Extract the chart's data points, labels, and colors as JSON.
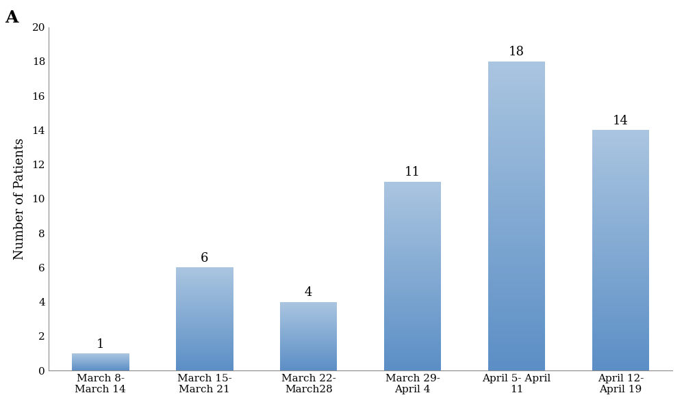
{
  "categories": [
    "March 8-\nMarch 14",
    "March 15-\nMarch 21",
    "March 22-\nMarch28",
    "March 29-\nApril 4",
    "April 5- April\n11",
    "April 12-\nApril 19"
  ],
  "values": [
    1,
    6,
    4,
    11,
    18,
    14
  ],
  "bar_color_bottom": "#5b8ec5",
  "bar_color_top": "#aac5e0",
  "ylabel": "Number of Patients",
  "ylim": [
    0,
    20
  ],
  "yticks": [
    0,
    2,
    4,
    6,
    8,
    10,
    12,
    14,
    16,
    18,
    20
  ],
  "panel_label": "A",
  "value_label_fontsize": 13,
  "axis_label_fontsize": 13,
  "tick_fontsize": 11,
  "panel_label_fontsize": 18,
  "bar_width": 0.55,
  "background_color": "#ffffff"
}
